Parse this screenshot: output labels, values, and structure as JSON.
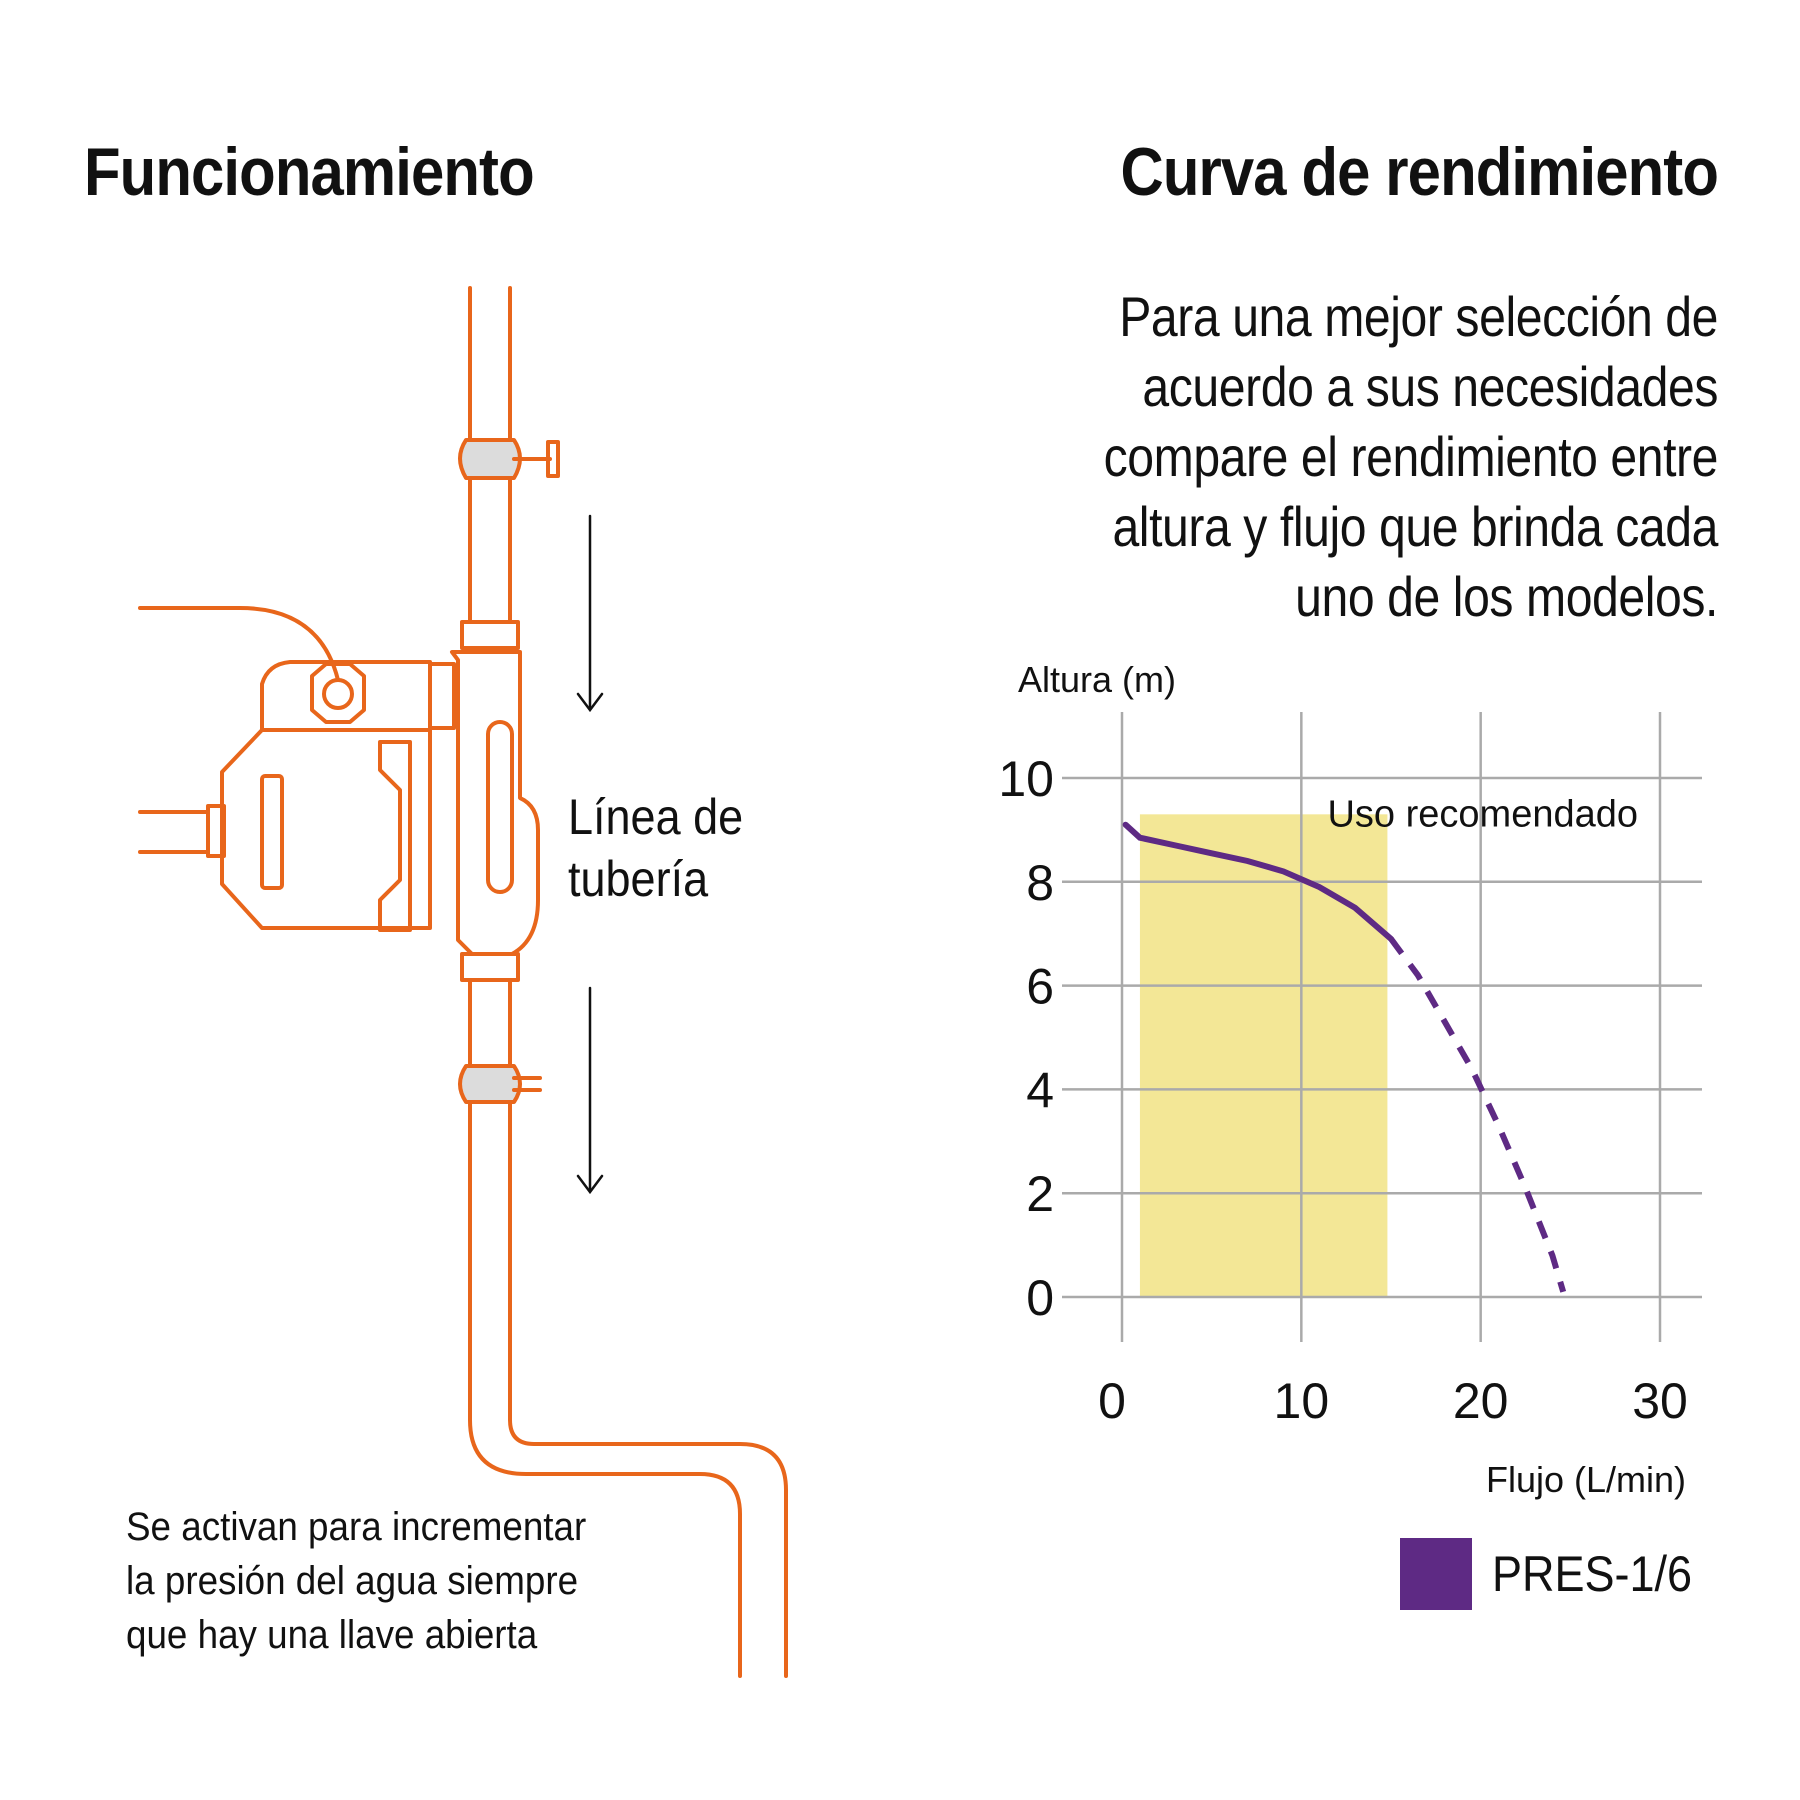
{
  "left": {
    "title": "Funcionamiento",
    "pipe_label_lines": [
      "Línea de",
      "tubería"
    ],
    "note_lines": [
      "Se activan para incrementar",
      "la presión del agua siempre",
      "que hay una llave abierta"
    ],
    "illustration_color": "#e8661b",
    "fitting_color": "#dcdcdc"
  },
  "right": {
    "title": "Curva de rendimiento",
    "intro_lines": [
      "Para una mejor selección de",
      "acuerdo a sus necesidades",
      "compare el rendimiento entre",
      "altura y flujo que brinda cada",
      "uno de los modelos."
    ]
  },
  "chart_data": {
    "type": "line",
    "xlabel": "Flujo (L/min)",
    "ylabel": "Altura (m)",
    "xlim": [
      0,
      30
    ],
    "ylim": [
      0,
      10
    ],
    "xticks": [
      0,
      10,
      20,
      30
    ],
    "yticks": [
      0,
      2,
      4,
      6,
      8,
      10
    ],
    "grid": true,
    "recommended_band": {
      "label": "Uso recomendado",
      "x": [
        1,
        14.8
      ],
      "y": [
        0,
        9.3
      ],
      "color": "#f3e796"
    },
    "series": [
      {
        "name": "PRES-1/6",
        "color": "#5e2a84",
        "solid_points": [
          [
            0.2,
            9.1
          ],
          [
            1,
            8.85
          ],
          [
            3,
            8.7
          ],
          [
            5,
            8.55
          ],
          [
            7,
            8.4
          ],
          [
            9,
            8.2
          ],
          [
            11,
            7.9
          ],
          [
            13,
            7.5
          ],
          [
            15,
            6.9
          ]
        ],
        "dashed_points": [
          [
            15,
            6.9
          ],
          [
            16.5,
            6.2
          ],
          [
            18,
            5.3
          ],
          [
            19.5,
            4.4
          ],
          [
            21,
            3.3
          ],
          [
            22.5,
            2.1
          ],
          [
            24,
            0.8
          ],
          [
            24.6,
            0.1
          ]
        ]
      }
    ],
    "legend_position": "bottom-right"
  }
}
